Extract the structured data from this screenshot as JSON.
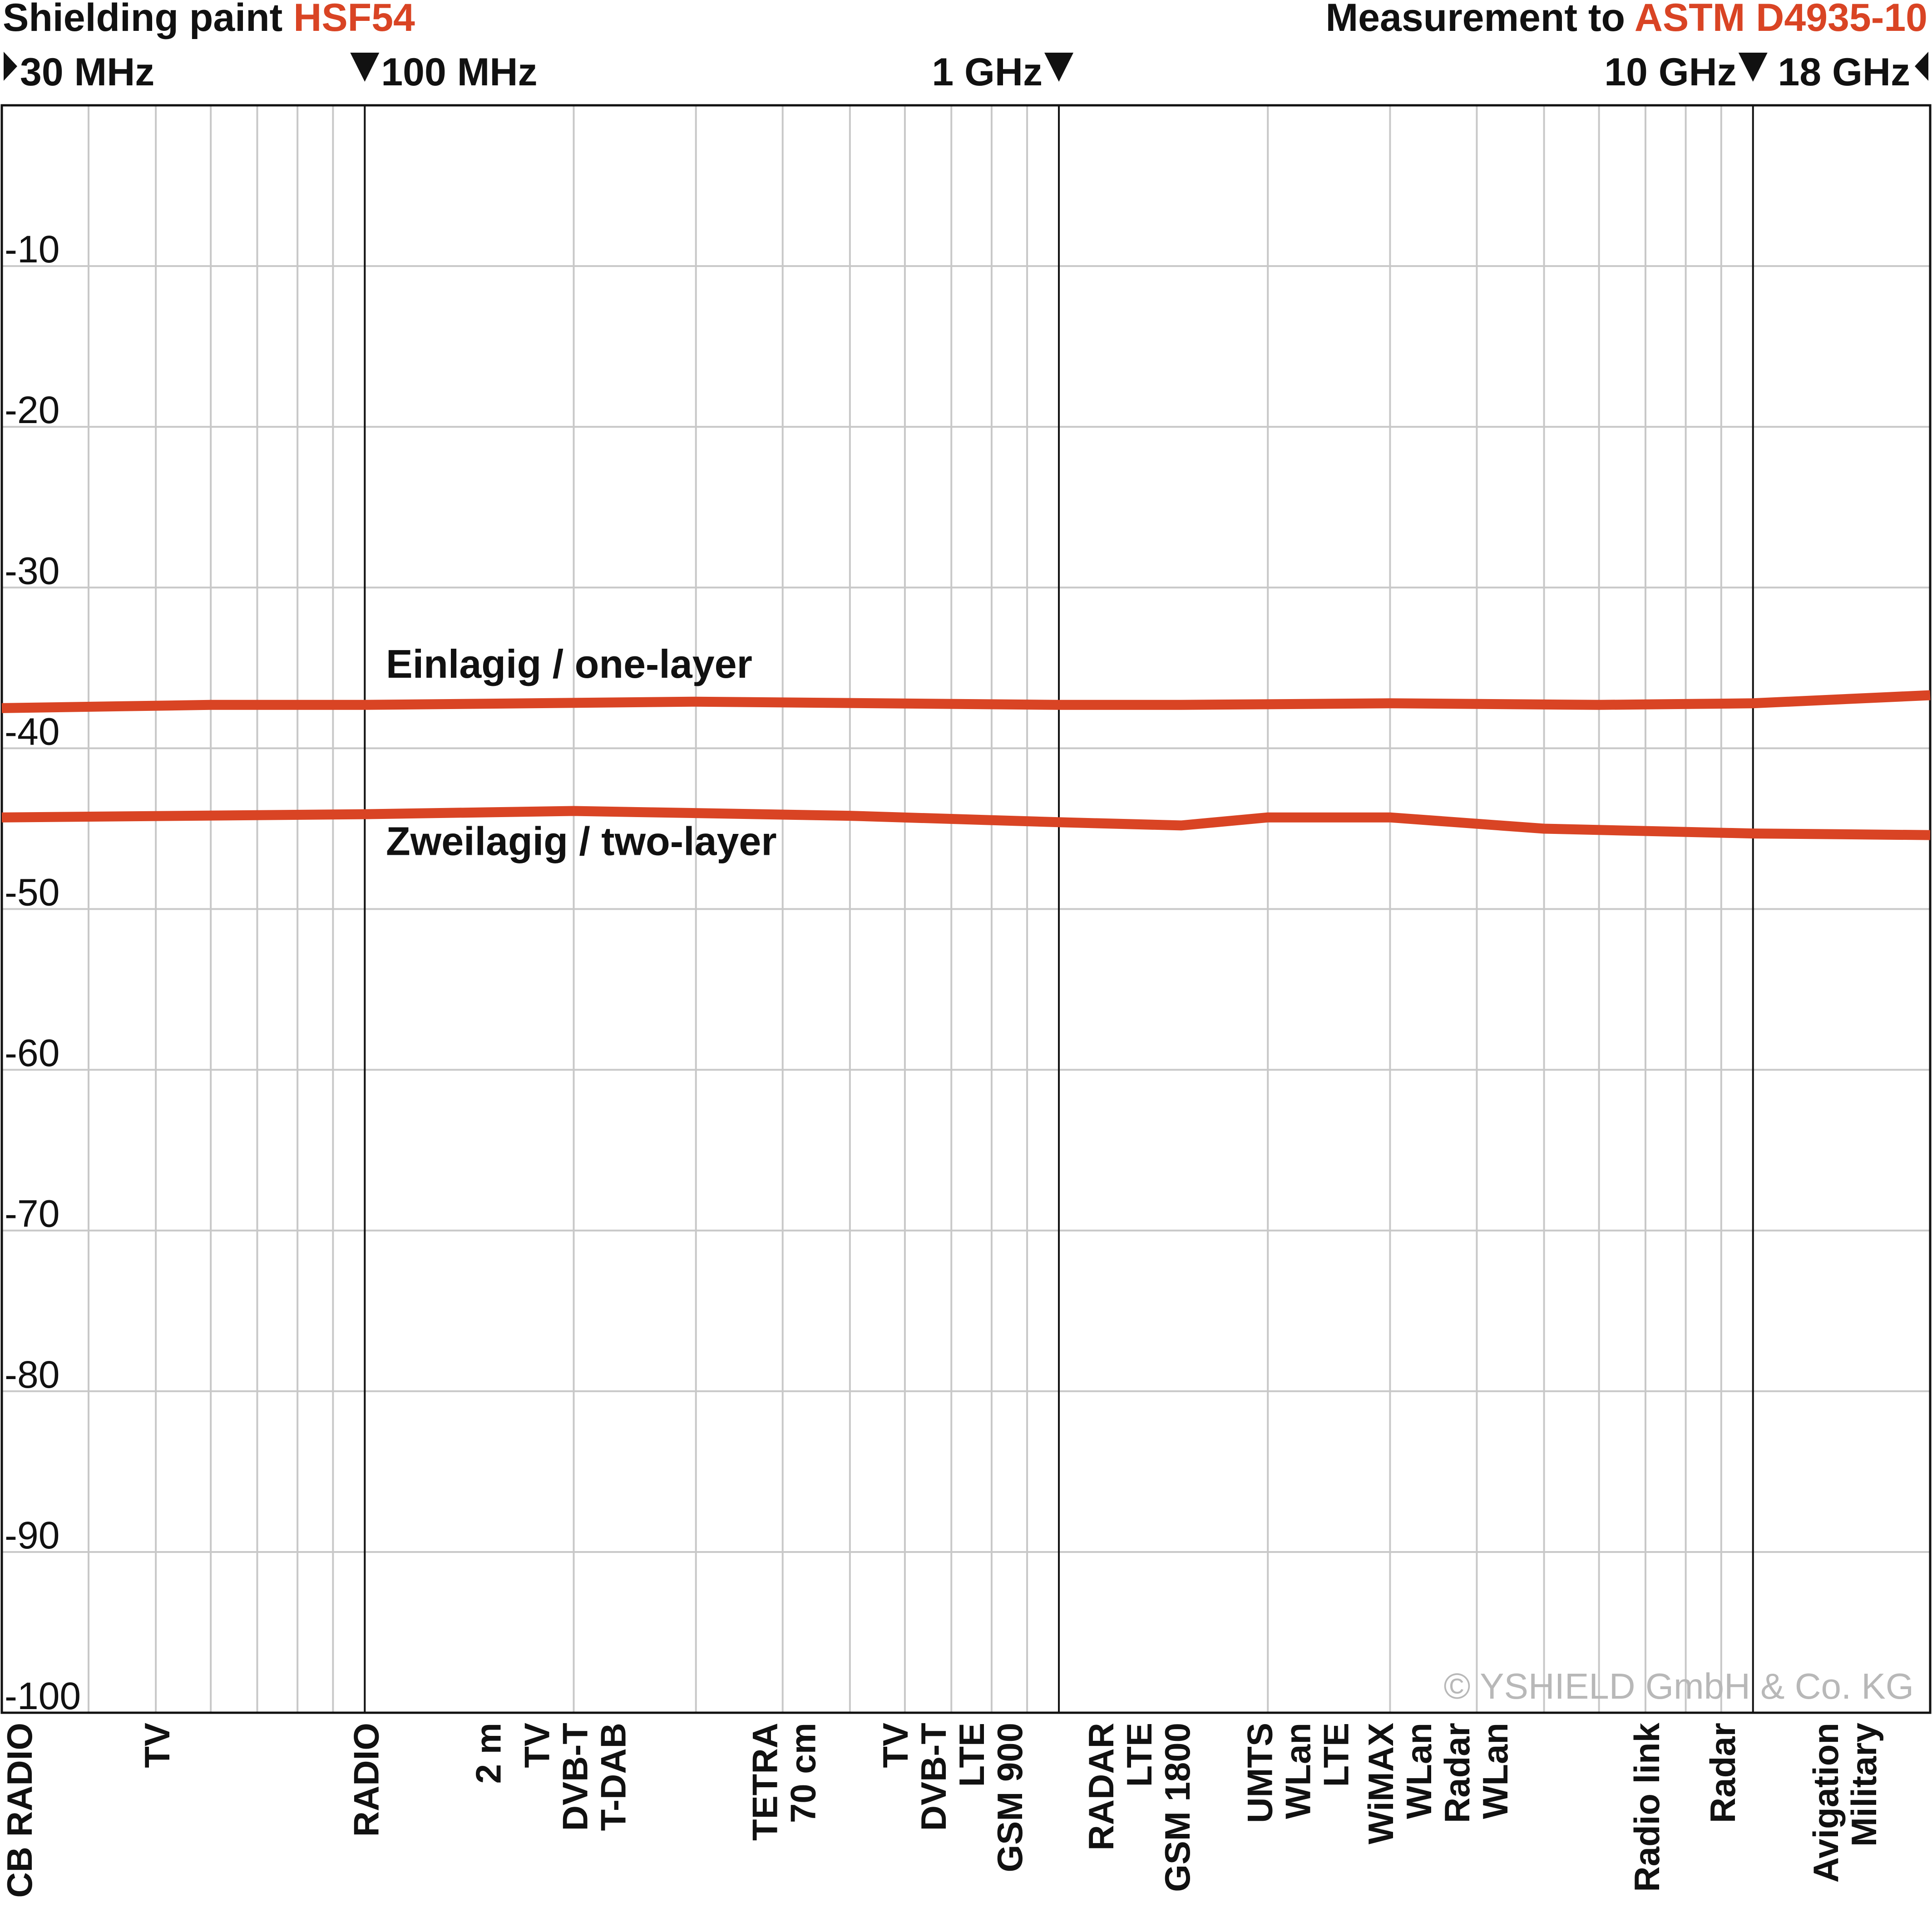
{
  "header": {
    "title_prefix": "Shielding paint ",
    "title_product": "HSF54",
    "standard_prefix": "Measurement to ",
    "standard_name": "ASTM D4935-10"
  },
  "colors": {
    "accent": "#d94424",
    "series": "#d94424",
    "grid": "#c8c8c8",
    "axis": "#111111",
    "copyright": "#b8b8b8"
  },
  "chart_data": {
    "type": "line",
    "x_scale": "log",
    "x_unit": "MHz",
    "xlim": [
      30,
      18000
    ],
    "ylim": [
      -100,
      0
    ],
    "y_ticks": [
      -10,
      -20,
      -30,
      -40,
      -50,
      -60,
      -70,
      -80,
      -90,
      -100
    ],
    "grid": true,
    "frequency_markers": [
      {
        "label": "30 MHz",
        "x": 30,
        "arrow": "right"
      },
      {
        "label": "100 MHz",
        "x": 100,
        "arrow": "down-left"
      },
      {
        "label": "1 GHz",
        "x": 1000,
        "arrow": "down-right"
      },
      {
        "label": "10 GHz",
        "x": 10000,
        "arrow": "down-right"
      },
      {
        "label": "18 GHz",
        "x": 18000,
        "arrow": "left"
      }
    ],
    "series": [
      {
        "name": "Einlagig / one-layer",
        "x": [
          30,
          60,
          100,
          300,
          1000,
          1500,
          3000,
          6000,
          10000,
          18000
        ],
        "y": [
          -37.5,
          -37.3,
          -37.3,
          -37.1,
          -37.3,
          -37.3,
          -37.2,
          -37.3,
          -37.2,
          -36.7
        ]
      },
      {
        "name": "Zweilagig / two-layer",
        "x": [
          30,
          100,
          200,
          500,
          1000,
          1500,
          2000,
          3000,
          5000,
          10000,
          18000
        ],
        "y": [
          -44.3,
          -44.1,
          -43.9,
          -44.2,
          -44.6,
          -44.8,
          -44.3,
          -44.3,
          -45.0,
          -45.3,
          -45.4
        ]
      }
    ],
    "band_labels": [
      {
        "x": 30,
        "lines": [
          "CB RADIO"
        ]
      },
      {
        "x": 50,
        "lines": [
          "TV"
        ]
      },
      {
        "x": 100,
        "lines": [
          "RADIO"
        ]
      },
      {
        "x": 150,
        "lines": [
          "2 m"
        ]
      },
      {
        "x": 200,
        "lines": [
          "TV",
          "DVB-T",
          "T-DAB"
        ]
      },
      {
        "x": 400,
        "lines": [
          "TETRA",
          "70 cm"
        ]
      },
      {
        "x": 700,
        "lines": [
          "TV",
          "DVB-T",
          "LTE",
          "GSM 900"
        ]
      },
      {
        "x": 1300,
        "lines": [
          "RADAR",
          "LTE",
          "GSM 1800"
        ]
      },
      {
        "x": 2200,
        "lines": [
          "UMTS",
          "WLan",
          "LTE"
        ]
      },
      {
        "x": 3500,
        "lines": [
          "WiMAX",
          "WLan",
          "Radar",
          "WLan"
        ]
      },
      {
        "x": 7000,
        "lines": [
          "Radio link"
        ]
      },
      {
        "x": 9000,
        "lines": [
          "Radar"
        ]
      },
      {
        "x": 13500,
        "lines": [
          "Avigation",
          "Military"
        ]
      }
    ],
    "copyright": "© YSHIELD GmbH & Co. KG"
  }
}
